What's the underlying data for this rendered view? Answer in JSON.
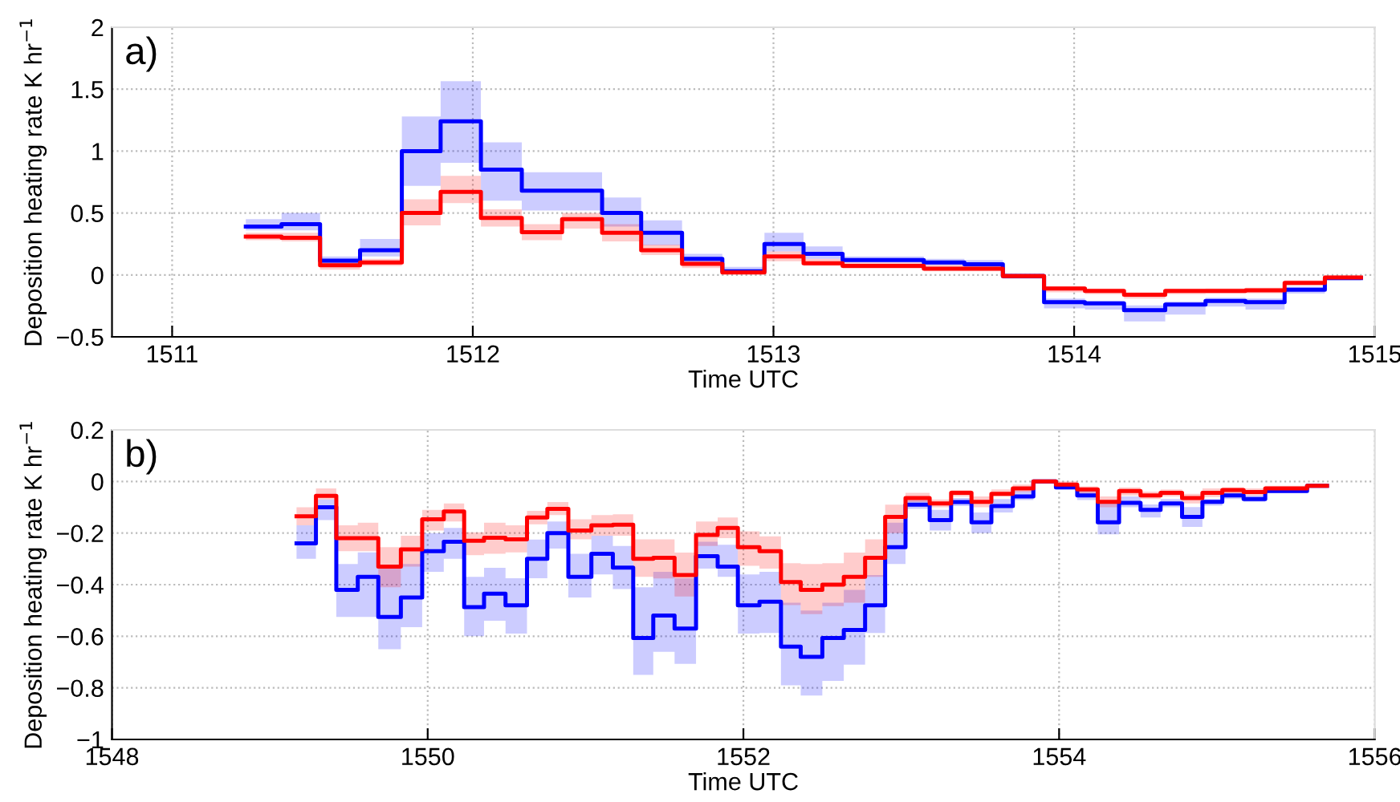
{
  "chart_data": [
    {
      "type": "step",
      "annotations": [
        "a)"
      ],
      "xlabel": "Time UTC",
      "ylabel": "Deposition heating rate K hr$^{−1}$",
      "xlim": [
        1510.8,
        1515
      ],
      "xticks": [
        1511,
        1512,
        1513,
        1514,
        1515
      ],
      "ylim": [
        -0.5,
        2
      ],
      "yticks": [
        {
          "value": -0.5,
          "label": "−0.5"
        },
        0,
        0.5,
        1,
        1.5,
        2
      ],
      "grid": true,
      "series": [
        {
          "color": "#0000ff",
          "x": [
            1511.245,
            1511.364,
            1511.492,
            1511.625,
            1511.764,
            1511.893,
            1512.027,
            1512.163,
            1512.297,
            1512.43,
            1512.56,
            1512.696,
            1512.83,
            1512.97,
            1513.1,
            1513.23,
            1513.5,
            1513.635,
            1513.763,
            1513.9,
            1514.036,
            1514.166,
            1514.303,
            1514.437,
            1514.57,
            1514.7,
            1514.834,
            1514.954
          ],
          "values": [
            0.39,
            0.41,
            0.116,
            0.2,
            1.0,
            1.24,
            0.85,
            0.68,
            0.68,
            0.5,
            0.34,
            0.13,
            0.03,
            0.25,
            0.17,
            0.12,
            0.1,
            0.086,
            -0.01,
            -0.22,
            -0.23,
            -0.285,
            -0.24,
            -0.21,
            -0.22,
            -0.12,
            -0.026,
            -0.026
          ],
          "lower": [
            0.36,
            0.36,
            0.086,
            0.15,
            0.72,
            0.905,
            0.6,
            0.52,
            0.52,
            0.39,
            0.24,
            0.086,
            0.01,
            0.19,
            0.13,
            0.1,
            0.08,
            0.065,
            -0.03,
            -0.27,
            -0.28,
            -0.375,
            -0.32,
            -0.255,
            -0.28,
            -0.15,
            -0.043,
            -0.043
          ],
          "upper": [
            0.45,
            0.5,
            0.15,
            0.29,
            1.28,
            1.565,
            1.07,
            0.83,
            0.83,
            0.625,
            0.44,
            0.17,
            0.065,
            0.34,
            0.23,
            0.15,
            0.13,
            0.12,
            0.01,
            -0.19,
            -0.21,
            -0.245,
            -0.215,
            -0.185,
            -0.19,
            -0.095,
            -0.013,
            -0.013
          ]
        },
        {
          "color": "#ff0000",
          "x": [
            1511.245,
            1511.364,
            1511.492,
            1511.625,
            1511.764,
            1511.893,
            1512.027,
            1512.163,
            1512.297,
            1512.43,
            1512.56,
            1512.696,
            1512.83,
            1512.97,
            1513.1,
            1513.23,
            1513.5,
            1513.635,
            1513.763,
            1513.9,
            1514.036,
            1514.166,
            1514.303,
            1514.437,
            1514.57,
            1514.7,
            1514.834,
            1514.954
          ],
          "values": [
            0.31,
            0.3,
            0.078,
            0.1,
            0.5,
            0.67,
            0.46,
            0.345,
            0.45,
            0.34,
            0.2,
            0.09,
            0.02,
            0.15,
            0.095,
            0.073,
            0.05,
            0.05,
            -0.01,
            -0.11,
            -0.13,
            -0.16,
            -0.13,
            -0.13,
            -0.125,
            -0.065,
            -0.02,
            -0.02
          ],
          "lower": [
            0.28,
            0.27,
            0.043,
            0.073,
            0.4,
            0.58,
            0.39,
            0.28,
            0.375,
            0.27,
            0.16,
            0.056,
            0.013,
            0.11,
            0.073,
            0.05,
            0.03,
            0.03,
            -0.026,
            -0.14,
            -0.155,
            -0.19,
            -0.155,
            -0.15,
            -0.149,
            -0.086,
            -0.04,
            -0.04
          ],
          "upper": [
            0.34,
            0.34,
            0.11,
            0.13,
            0.61,
            0.8,
            0.53,
            0.41,
            0.5,
            0.41,
            0.245,
            0.13,
            0.043,
            0.19,
            0.13,
            0.1,
            0.082,
            0.082,
            0.013,
            -0.09,
            -0.11,
            -0.14,
            -0.11,
            -0.108,
            -0.104,
            -0.043,
            -0.004,
            -0.004
          ]
        }
      ]
    },
    {
      "type": "step",
      "annotations": [
        "b)"
      ],
      "xlabel": "Time UTC",
      "ylabel": "Deposition heating rate K hr$^{−1}$",
      "xlim": [
        1548,
        1556
      ],
      "xticks": [
        1548,
        1550,
        1552,
        1554,
        1556
      ],
      "ylim": [
        -1,
        0.2
      ],
      "yticks": [
        {
          "value": -1,
          "label": "−1"
        },
        {
          "value": -0.8,
          "label": "−0.8"
        },
        {
          "value": -0.6,
          "label": "−0.6"
        },
        {
          "value": -0.4,
          "label": "−0.4"
        },
        {
          "value": -0.2,
          "label": "−0.2"
        },
        0,
        0.2
      ],
      "grid": true,
      "series": [
        {
          "color": "#0000ff",
          "x": [
            1549.169,
            1549.292,
            1549.421,
            1549.557,
            1549.687,
            1549.83,
            1549.965,
            1550.102,
            1550.231,
            1550.357,
            1550.493,
            1550.629,
            1550.758,
            1550.891,
            1551.037,
            1551.173,
            1551.302,
            1551.429,
            1551.564,
            1551.7,
            1551.837,
            1551.965,
            1552.102,
            1552.238,
            1552.363,
            1552.5,
            1552.636,
            1552.771,
            1552.898,
            1553.027,
            1553.18,
            1553.316,
            1553.445,
            1553.571,
            1553.707,
            1553.837,
            1553.98,
            1554.115,
            1554.245,
            1554.38,
            1554.516,
            1554.643,
            1554.779,
            1554.908,
            1555.034,
            1555.169,
            1555.306,
            1555.435,
            1555.571,
            1555.697
          ],
          "values": [
            -0.24,
            -0.1,
            -0.42,
            -0.37,
            -0.525,
            -0.45,
            -0.27,
            -0.234,
            -0.487,
            -0.435,
            -0.48,
            -0.3,
            -0.2,
            -0.37,
            -0.28,
            -0.334,
            -0.607,
            -0.52,
            -0.57,
            -0.29,
            -0.33,
            -0.48,
            -0.466,
            -0.64,
            -0.68,
            -0.607,
            -0.576,
            -0.48,
            -0.255,
            -0.09,
            -0.15,
            -0.08,
            -0.158,
            -0.095,
            -0.058,
            0.0,
            -0.023,
            -0.054,
            -0.158,
            -0.083,
            -0.11,
            -0.085,
            -0.137,
            -0.079,
            -0.054,
            -0.068,
            -0.037,
            -0.037,
            -0.017,
            -0.017
          ],
          "lower": [
            -0.3,
            -0.15,
            -0.525,
            -0.525,
            -0.65,
            -0.565,
            -0.35,
            -0.3,
            -0.6,
            -0.54,
            -0.59,
            -0.375,
            -0.26,
            -0.45,
            -0.36,
            -0.417,
            -0.75,
            -0.66,
            -0.707,
            -0.338,
            -0.37,
            -0.59,
            -0.587,
            -0.79,
            -0.83,
            -0.773,
            -0.71,
            -0.587,
            -0.32,
            -0.106,
            -0.19,
            -0.095,
            -0.2,
            -0.12,
            -0.072,
            -0.006,
            -0.031,
            -0.072,
            -0.205,
            -0.1,
            -0.14,
            -0.1,
            -0.176,
            -0.094,
            -0.068,
            -0.079,
            -0.044,
            -0.044,
            -0.023,
            -0.023
          ],
          "upper": [
            -0.17,
            -0.07,
            -0.32,
            -0.275,
            -0.335,
            -0.32,
            -0.2,
            -0.18,
            -0.37,
            -0.335,
            -0.375,
            -0.225,
            -0.155,
            -0.28,
            -0.21,
            -0.25,
            -0.41,
            -0.35,
            -0.375,
            -0.234,
            -0.245,
            -0.36,
            -0.35,
            -0.47,
            -0.5,
            -0.47,
            -0.42,
            -0.363,
            -0.16,
            -0.073,
            -0.11,
            -0.064,
            -0.12,
            -0.068,
            -0.037,
            0.004,
            -0.017,
            -0.037,
            -0.085,
            -0.058,
            -0.089,
            -0.068,
            -0.099,
            -0.068,
            -0.044,
            -0.054,
            -0.031,
            -0.031,
            -0.012,
            -0.012
          ]
        },
        {
          "color": "#ff0000",
          "x": [
            1549.169,
            1549.292,
            1549.421,
            1549.557,
            1549.687,
            1549.83,
            1549.965,
            1550.102,
            1550.231,
            1550.357,
            1550.493,
            1550.629,
            1550.758,
            1550.891,
            1551.037,
            1551.173,
            1551.302,
            1551.429,
            1551.564,
            1551.7,
            1551.837,
            1551.965,
            1552.102,
            1552.238,
            1552.363,
            1552.5,
            1552.636,
            1552.771,
            1552.898,
            1553.027,
            1553.18,
            1553.316,
            1553.445,
            1553.571,
            1553.707,
            1553.837,
            1553.98,
            1554.115,
            1554.245,
            1554.38,
            1554.516,
            1554.643,
            1554.779,
            1554.908,
            1555.034,
            1555.169,
            1555.306,
            1555.435,
            1555.571,
            1555.697
          ],
          "values": [
            -0.135,
            -0.056,
            -0.22,
            -0.22,
            -0.33,
            -0.263,
            -0.147,
            -0.116,
            -0.23,
            -0.218,
            -0.224,
            -0.14,
            -0.106,
            -0.19,
            -0.17,
            -0.168,
            -0.3,
            -0.296,
            -0.363,
            -0.207,
            -0.18,
            -0.255,
            -0.27,
            -0.39,
            -0.42,
            -0.4,
            -0.37,
            -0.296,
            -0.137,
            -0.064,
            -0.085,
            -0.044,
            -0.079,
            -0.048,
            -0.027,
            0.0,
            -0.012,
            -0.031,
            -0.079,
            -0.037,
            -0.054,
            -0.044,
            -0.064,
            -0.044,
            -0.033,
            -0.041,
            -0.027,
            -0.027,
            -0.017,
            -0.017
          ],
          "lower": [
            -0.17,
            -0.07,
            -0.27,
            -0.27,
            -0.41,
            -0.33,
            -0.19,
            -0.155,
            -0.286,
            -0.28,
            -0.275,
            -0.166,
            -0.13,
            -0.224,
            -0.21,
            -0.21,
            -0.37,
            -0.376,
            -0.446,
            -0.25,
            -0.22,
            -0.327,
            -0.338,
            -0.479,
            -0.514,
            -0.483,
            -0.47,
            -0.37,
            -0.2,
            -0.08,
            -0.1,
            -0.058,
            -0.1,
            -0.058,
            -0.041,
            -0.006,
            -0.027,
            -0.048,
            -0.1,
            -0.054,
            -0.068,
            -0.058,
            -0.085,
            -0.06,
            -0.048,
            -0.054,
            -0.037,
            -0.037,
            -0.025,
            -0.025
          ],
          "upper": [
            -0.1,
            -0.027,
            -0.17,
            -0.16,
            -0.255,
            -0.21,
            -0.11,
            -0.085,
            -0.197,
            -0.16,
            -0.17,
            -0.114,
            -0.08,
            -0.147,
            -0.13,
            -0.127,
            -0.224,
            -0.224,
            -0.276,
            -0.155,
            -0.14,
            -0.193,
            -0.213,
            -0.317,
            -0.32,
            -0.317,
            -0.276,
            -0.224,
            -0.09,
            -0.044,
            -0.07,
            -0.033,
            -0.058,
            -0.031,
            -0.012,
            0.006,
            0.0,
            -0.019,
            -0.058,
            -0.023,
            -0.039,
            -0.031,
            -0.048,
            -0.027,
            -0.023,
            -0.027,
            -0.017,
            -0.017,
            -0.008,
            -0.008
          ]
        }
      ]
    }
  ]
}
